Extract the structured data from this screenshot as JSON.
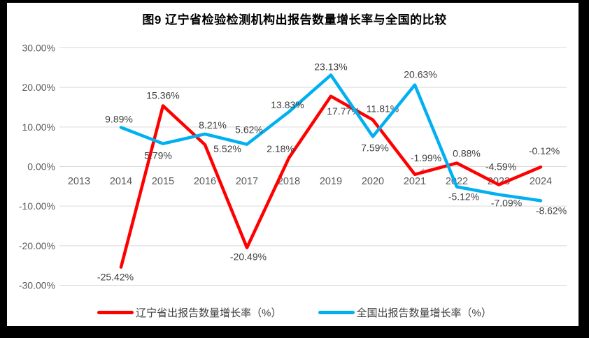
{
  "title": "图9  辽宁省检验检测机构出报告数量增长率与全国的比较",
  "colors": {
    "liaoning_line": "#FF0000",
    "national_line": "#00B0F0",
    "gridline": "#D9D9D9",
    "axis_text": "#595959",
    "data_label_text": "#404040",
    "leader_line": "#A6A6A6",
    "frame": "#000000",
    "title_text": "#000000"
  },
  "chart_data": {
    "type": "line",
    "title": "图9  辽宁省检验检测机构出报告数量增长率与全国的比较",
    "x_categories": [
      "2013",
      "2014",
      "2015",
      "2016",
      "2017",
      "2018",
      "2019",
      "2020",
      "2021",
      "2022",
      "2023",
      "2024"
    ],
    "y_axis": {
      "ticks": [
        "30.00%",
        "20.00%",
        "10.00%",
        "0.00%",
        "-10.00%",
        "-20.00%",
        "-30.00%"
      ],
      "tick_values": [
        30,
        20,
        10,
        0,
        -10,
        -20,
        -30
      ],
      "ylim": [
        -30,
        30
      ]
    },
    "grid": true,
    "legend_position": "bottom",
    "series": [
      {
        "name": "辽宁省出报告数量增长率（%）",
        "color": "#FF0000",
        "start_category": "2014",
        "values": [
          -25.42,
          15.36,
          5.52,
          -20.49,
          2.18,
          17.77,
          11.81,
          -1.99,
          0.88,
          -4.59,
          -0.12
        ],
        "labels": [
          "-25.42%",
          "15.36%",
          "5.52%",
          "-20.49%",
          "2.18%",
          "17.77%",
          "11.81%",
          "-1.99%",
          "0.88%",
          "-4.59%",
          "-0.12%"
        ]
      },
      {
        "name": "全国出报告数量增长率（%）",
        "color": "#00B0F0",
        "start_category": "2014",
        "values": [
          9.89,
          5.79,
          8.21,
          5.62,
          13.83,
          23.13,
          7.59,
          20.63,
          -5.12,
          -7.09,
          -8.62
        ],
        "labels": [
          "9.89%",
          "5.79%",
          "8.21%",
          "5.62%",
          "13.83%",
          "23.13%",
          "7.59%",
          "20.63%",
          "-5.12%",
          "-7.09%",
          "-8.62%"
        ]
      }
    ]
  }
}
